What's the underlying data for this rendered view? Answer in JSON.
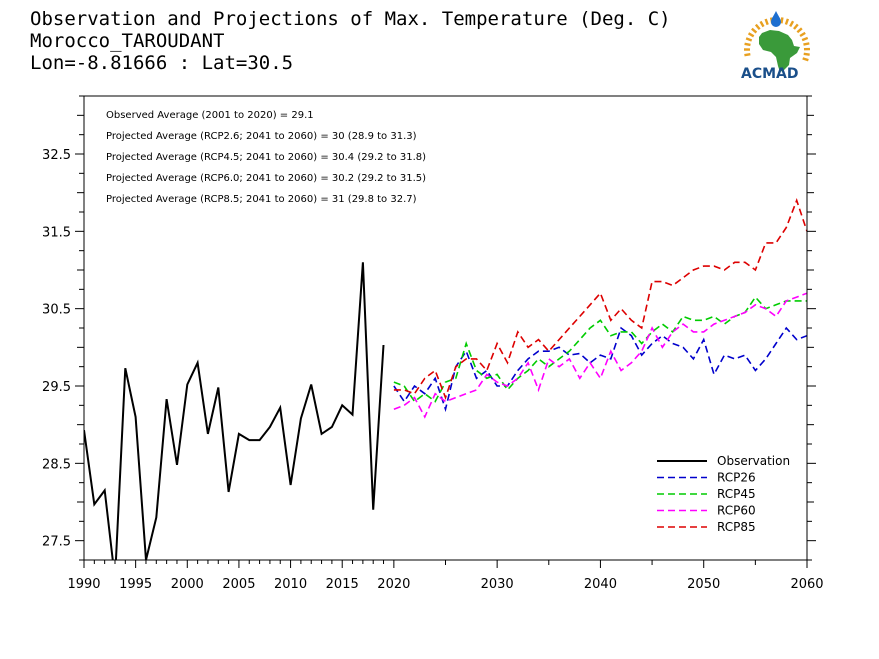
{
  "title_lines": [
    "Observation and Projections of Max. Temperature (Deg. C)",
    "Morocco_TAROUDANT",
    "Lon=-8.81666 : Lat=30.5"
  ],
  "logo": {
    "text": "ACMAD",
    "colors": {
      "africa": "#3a9a3a",
      "rays": "#e8a020",
      "drop": "#1e6fd0",
      "text": "#1a4f8a"
    }
  },
  "chart_data": {
    "type": "line",
    "xlim": [
      1990,
      2060
    ],
    "ylim": [
      27.25,
      33.25
    ],
    "x_ticks": [
      1990,
      1995,
      2000,
      2005,
      2010,
      2015,
      2020,
      2030,
      2040,
      2050,
      2060
    ],
    "y_ticks": [
      27.5,
      28.5,
      29.5,
      30.5,
      31.5,
      32.5
    ],
    "notes": [
      "Observed Average (2001 to 2020) = 29.1",
      "Projected Average (RCP2.6; 2041 to 2060) = 30 (28.9 to 31.3)",
      "Projected Average (RCP4.5; 2041 to 2060) = 30.4 (29.2 to 31.8)",
      "Projected Average (RCP6.0; 2041 to 2060) = 30.2 (29.2 to 31.5)",
      "Projected Average (RCP8.5; 2041 to 2060) = 31 (29.8 to 32.7)"
    ],
    "legend_position": "bottom-right",
    "series": [
      {
        "name": "Observation",
        "color": "#000000",
        "dash": false,
        "x": [
          1990,
          1991,
          1992,
          1993,
          1994,
          1995,
          1996,
          1997,
          1998,
          1999,
          2000,
          2001,
          2002,
          2003,
          2004,
          2005,
          2006,
          2007,
          2008,
          2009,
          2010,
          2011,
          2012,
          2013,
          2014,
          2015,
          2016,
          2017,
          2018,
          2019
        ],
        "y": [
          28.93,
          27.97,
          28.15,
          27.0,
          29.73,
          29.1,
          27.25,
          27.8,
          29.33,
          28.48,
          29.52,
          29.8,
          28.88,
          29.48,
          28.13,
          28.88,
          28.8,
          28.8,
          28.97,
          29.22,
          28.22,
          29.08,
          29.52,
          28.88,
          28.97,
          29.25,
          29.13,
          31.1,
          27.9,
          30.03
        ]
      },
      {
        "name": "RCP26",
        "color": "#0000cc",
        "dash": true,
        "x": [
          2020,
          2021,
          2022,
          2023,
          2024,
          2025,
          2026,
          2027,
          2028,
          2029,
          2030,
          2031,
          2032,
          2033,
          2034,
          2035,
          2036,
          2037,
          2038,
          2039,
          2040,
          2041,
          2042,
          2043,
          2044,
          2045,
          2046,
          2047,
          2048,
          2049,
          2050,
          2051,
          2052,
          2053,
          2054,
          2055,
          2056,
          2057,
          2058,
          2059,
          2060
        ],
        "y": [
          29.5,
          29.3,
          29.5,
          29.4,
          29.6,
          29.2,
          29.75,
          29.95,
          29.6,
          29.7,
          29.5,
          29.5,
          29.7,
          29.85,
          29.95,
          29.95,
          30.0,
          29.9,
          29.92,
          29.8,
          29.9,
          29.85,
          30.25,
          30.15,
          29.9,
          30.05,
          30.15,
          30.05,
          30.0,
          29.85,
          30.1,
          29.65,
          29.9,
          29.85,
          29.9,
          29.7,
          29.85,
          30.05,
          30.25,
          30.1,
          30.15
        ]
      },
      {
        "name": "RCP45",
        "color": "#00cc00",
        "dash": true,
        "x": [
          2020,
          2021,
          2022,
          2023,
          2024,
          2025,
          2026,
          2027,
          2028,
          2029,
          2030,
          2031,
          2032,
          2033,
          2034,
          2035,
          2036,
          2037,
          2038,
          2039,
          2040,
          2041,
          2042,
          2043,
          2044,
          2045,
          2046,
          2047,
          2048,
          2049,
          2050,
          2051,
          2052,
          2053,
          2054,
          2055,
          2056,
          2057,
          2058,
          2059,
          2060
        ],
        "y": [
          29.55,
          29.5,
          29.3,
          29.4,
          29.3,
          29.55,
          29.6,
          30.05,
          29.7,
          29.6,
          29.65,
          29.45,
          29.6,
          29.7,
          29.85,
          29.75,
          29.85,
          29.95,
          30.1,
          30.25,
          30.35,
          30.15,
          30.2,
          30.2,
          30.05,
          30.2,
          30.3,
          30.2,
          30.4,
          30.35,
          30.35,
          30.4,
          30.3,
          30.4,
          30.45,
          30.65,
          30.5,
          30.55,
          30.6,
          30.6,
          30.6
        ]
      },
      {
        "name": "RCP60",
        "color": "#ff00ff",
        "dash": true,
        "x": [
          2020,
          2021,
          2022,
          2023,
          2024,
          2025,
          2026,
          2027,
          2028,
          2029,
          2030,
          2031,
          2032,
          2033,
          2034,
          2035,
          2036,
          2037,
          2038,
          2039,
          2040,
          2041,
          2042,
          2043,
          2044,
          2045,
          2046,
          2047,
          2048,
          2049,
          2050,
          2051,
          2052,
          2053,
          2054,
          2055,
          2056,
          2057,
          2058,
          2059,
          2060
        ],
        "y": [
          29.2,
          29.25,
          29.35,
          29.1,
          29.4,
          29.3,
          29.35,
          29.4,
          29.45,
          29.65,
          29.55,
          29.5,
          29.6,
          29.8,
          29.45,
          29.85,
          29.75,
          29.85,
          29.6,
          29.8,
          29.6,
          29.95,
          29.7,
          29.8,
          29.95,
          30.25,
          30.0,
          30.2,
          30.3,
          30.2,
          30.2,
          30.3,
          30.35,
          30.4,
          30.45,
          30.55,
          30.5,
          30.4,
          30.6,
          30.65,
          30.7
        ]
      },
      {
        "name": "RCP85",
        "color": "#dd0000",
        "dash": true,
        "x": [
          2020,
          2021,
          2022,
          2023,
          2024,
          2025,
          2026,
          2027,
          2028,
          2029,
          2030,
          2031,
          2032,
          2033,
          2034,
          2035,
          2036,
          2037,
          2038,
          2039,
          2040,
          2041,
          2042,
          2043,
          2044,
          2045,
          2046,
          2047,
          2048,
          2049,
          2050,
          2051,
          2052,
          2053,
          2054,
          2055,
          2056,
          2057,
          2058,
          2059,
          2060
        ],
        "y": [
          29.45,
          29.45,
          29.4,
          29.6,
          29.7,
          29.35,
          29.75,
          29.85,
          29.85,
          29.7,
          30.05,
          29.8,
          30.2,
          30.0,
          30.1,
          29.95,
          30.1,
          30.25,
          30.4,
          30.55,
          30.7,
          30.35,
          30.5,
          30.35,
          30.25,
          30.85,
          30.85,
          30.8,
          30.9,
          31.0,
          31.05,
          31.05,
          31.0,
          31.1,
          31.1,
          31.0,
          31.35,
          31.35,
          31.55,
          31.9,
          31.5
        ]
      }
    ]
  }
}
